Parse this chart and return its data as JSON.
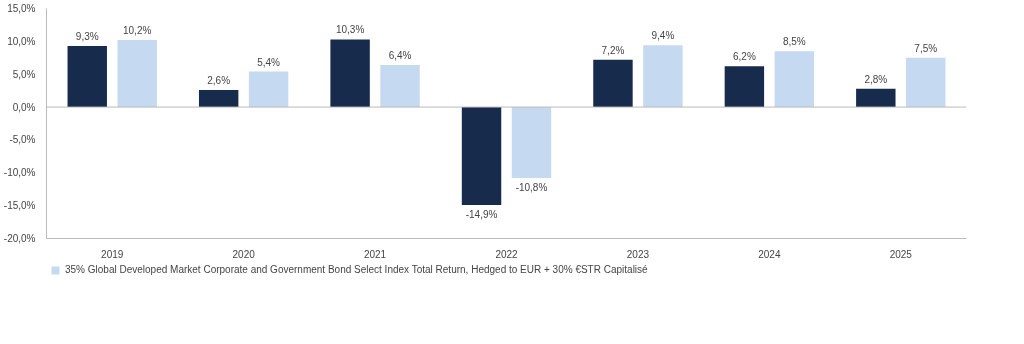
{
  "chart_data": {
    "type": "bar",
    "categories": [
      "2019",
      "2020",
      "2021",
      "2022",
      "2023",
      "2024",
      "2025"
    ],
    "series": [
      {
        "color": "#172b4d",
        "values": [
          9.3,
          2.6,
          10.3,
          -14.9,
          7.2,
          6.2,
          2.8
        ],
        "value_labels": [
          "9,3%",
          "2,6%",
          "10,3%",
          "-14,9%",
          "7,2%",
          "6,2%",
          "2,8%"
        ]
      },
      {
        "name": "35% Global Developed Market Corporate and Government Bond Select Index Total Return, Hedged to EUR + 30% €STR Capitalisé",
        "color": "#c5d9f1",
        "values": [
          10.2,
          5.4,
          6.4,
          -10.8,
          9.4,
          8.5,
          7.5
        ],
        "value_labels": [
          "10,2%",
          "5,4%",
          "6,4%",
          "-10,8%",
          "9,4%",
          "8,5%",
          "7,5%"
        ]
      }
    ],
    "ylim": [
      -20,
      15
    ],
    "yticks": [
      {
        "value": -20,
        "label": "-20,0%"
      },
      {
        "value": -15,
        "label": "-15,0%"
      },
      {
        "value": -10,
        "label": "-10,0%"
      },
      {
        "value": -5,
        "label": "-5,0%"
      },
      {
        "value": 0,
        "label": "0,0%"
      },
      {
        "value": 5,
        "label": "5,0%"
      },
      {
        "value": 10,
        "label": "10,0%"
      },
      {
        "value": 15,
        "label": "15,0%"
      }
    ],
    "grid": false,
    "ref_lines": [
      {
        "axis": "y",
        "value": 0,
        "color": "#bbbbbb"
      }
    ],
    "legend": "bottom"
  }
}
